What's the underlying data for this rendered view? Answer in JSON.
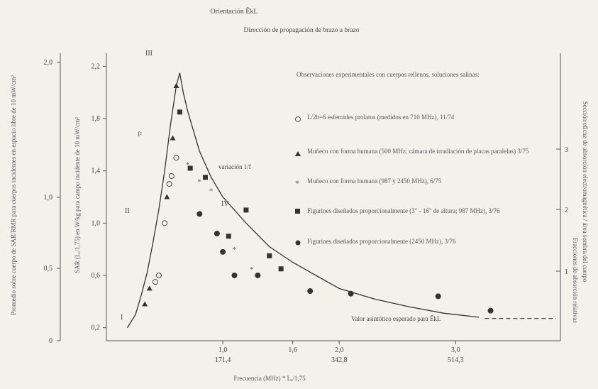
{
  "chart_data": {
    "type": "scatter",
    "title": "Orientación ẼkL",
    "subtitle": "Dirección de propagación de brazo a brazo",
    "xlabel": "Frecuencia (MHz) * Lₑ/1,75",
    "ylabel_left_outer": "Promedio sobre cuerpo de SAR/RMR para cuerpos incidentes en espacio libre de 10 mW/cm²",
    "ylabel_left_inner": "SAR (Lₑ/1,75) en W/kg para campo incidente de 10 mW/cm²",
    "ylabel_right_outer": "Sección eficaz de absorción electromagnética / área sombra del cuerpo",
    "ylabel_right_inner": "Fracciones de absorción relativas",
    "x_ticks": [
      {
        "top": "1,0",
        "bottom": "171,4"
      },
      {
        "top": "1,6",
        "bottom": ""
      },
      {
        "top": "2,0",
        "bottom": "342,8"
      },
      {
        "top": "3,0",
        "bottom": "514,3"
      }
    ],
    "x_tick_values": [
      1.0,
      1.6,
      2.0,
      3.0
    ],
    "xlim": [
      0.0,
      3.9
    ],
    "y_inner_ticks": [
      "0,2",
      "0,6",
      "1,0",
      "1,4",
      "1,8",
      "2,2"
    ],
    "y_inner_values": [
      0.2,
      0.6,
      1.0,
      1.4,
      1.8,
      2.2
    ],
    "ylim": [
      0.1,
      2.3
    ],
    "y_outer_ticks": [
      "0",
      "0,5",
      "1,0",
      "2,0"
    ],
    "y_right_ticks": [
      "1",
      "2",
      "3"
    ],
    "annotations": {
      "peak": "III",
      "region_1": "I",
      "region_2": "II",
      "region_4": "IV",
      "f_label": "f²",
      "curve_label": "variación 1/f",
      "asymptote": "Valor asintótico esperado para ẼkL"
    },
    "legend_title": "Observaciones experimentales con cuerpos rellenos, soluciones salinas:",
    "legend": [
      {
        "marker": "open-circle",
        "text": "L/2b=6 esferoides prolatos (medidos en 710 MHz), 11/74"
      },
      {
        "marker": "triangle",
        "text": "Muñeco con forma humana (500 MHz; cámara de irradiación de placas paralelas) 3/75"
      },
      {
        "marker": "star",
        "text": "Muñeco con forma humana (987 y 2450 MHz), 6/75"
      },
      {
        "marker": "square",
        "text": "Figurines diseñados proporcionalmente (3\" - 16\" de altura; 987 MHz), 3/76"
      },
      {
        "marker": "filled-circle",
        "text": "Figurines diseñados proporcionalmente (2450 MHz), 3/76"
      }
    ],
    "curve": [
      [
        0.18,
        0.2
      ],
      [
        0.25,
        0.3
      ],
      [
        0.3,
        0.45
      ],
      [
        0.35,
        0.62
      ],
      [
        0.4,
        0.85
      ],
      [
        0.45,
        1.1
      ],
      [
        0.5,
        1.4
      ],
      [
        0.55,
        1.75
      ],
      [
        0.6,
        2.05
      ],
      [
        0.63,
        2.15
      ],
      [
        0.66,
        2.0
      ],
      [
        0.7,
        1.85
      ],
      [
        0.8,
        1.55
      ],
      [
        0.9,
        1.35
      ],
      [
        1.0,
        1.2
      ],
      [
        1.2,
        1.0
      ],
      [
        1.4,
        0.82
      ],
      [
        1.6,
        0.7
      ],
      [
        1.8,
        0.6
      ],
      [
        2.0,
        0.5
      ],
      [
        2.3,
        0.42
      ],
      [
        2.6,
        0.36
      ],
      [
        2.9,
        0.31
      ],
      [
        3.2,
        0.28
      ]
    ],
    "asymptote_value": 0.27,
    "series": [
      {
        "name": "open-circle",
        "points": [
          [
            0.42,
            0.55
          ],
          [
            0.45,
            0.6
          ],
          [
            0.5,
            1.0
          ],
          [
            0.54,
            1.3
          ],
          [
            0.56,
            1.36
          ],
          [
            0.6,
            1.5
          ]
        ]
      },
      {
        "name": "triangle",
        "points": [
          [
            0.33,
            0.38
          ],
          [
            0.37,
            0.5
          ],
          [
            0.52,
            1.2
          ],
          [
            0.57,
            1.65
          ],
          [
            0.6,
            2.05
          ]
        ]
      },
      {
        "name": "star",
        "points": [
          [
            0.7,
            1.45
          ],
          [
            0.8,
            1.32
          ],
          [
            0.9,
            1.25
          ],
          [
            1.1,
            0.8
          ],
          [
            1.25,
            0.65
          ]
        ]
      },
      {
        "name": "square",
        "points": [
          [
            0.63,
            1.85
          ],
          [
            0.72,
            1.42
          ],
          [
            0.85,
            1.35
          ],
          [
            1.05,
            0.9
          ],
          [
            1.2,
            1.1
          ],
          [
            1.4,
            0.75
          ],
          [
            1.5,
            0.65
          ]
        ]
      },
      {
        "name": "filled-circle",
        "points": [
          [
            0.8,
            1.07
          ],
          [
            0.95,
            0.92
          ],
          [
            1.0,
            0.78
          ],
          [
            1.1,
            0.6
          ],
          [
            1.3,
            0.6
          ],
          [
            1.75,
            0.48
          ],
          [
            2.1,
            0.46
          ],
          [
            2.85,
            0.44
          ],
          [
            3.3,
            0.33
          ]
        ]
      }
    ]
  }
}
